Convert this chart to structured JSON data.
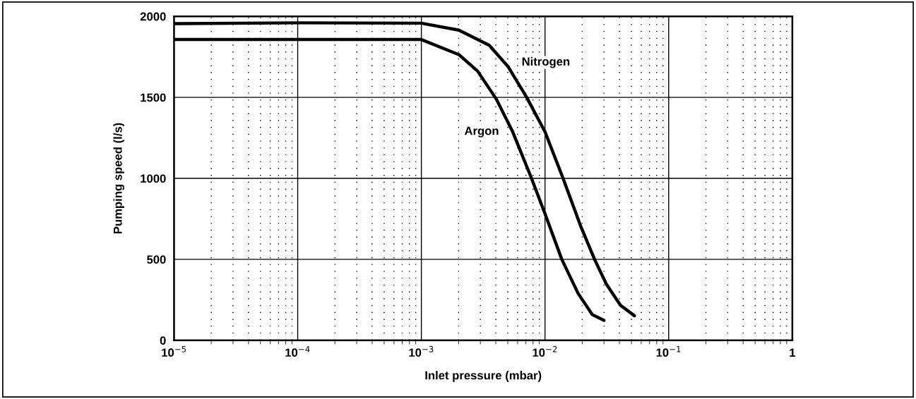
{
  "chart_data": {
    "type": "line",
    "xlabel": "Inlet pressure (mbar)",
    "ylabel": "Pumping speed (l/s)",
    "log": "x",
    "xlim": [
      1e-05,
      1
    ],
    "xticks": [
      {
        "value": 1e-05,
        "label": "10$^{−5}$"
      },
      {
        "value": 0.0001,
        "label": "10$^{−4}$"
      },
      {
        "value": 0.001,
        "label": "10$^{−3}$"
      },
      {
        "value": 0.01,
        "label": "10$^{−2}$"
      },
      {
        "value": 0.1,
        "label": "10$^{−1}$"
      },
      1
    ],
    "ylim": [
      0,
      2000
    ],
    "yticks": [
      0,
      500,
      1000,
      1500,
      2000
    ],
    "grid": true,
    "line_style": "solid",
    "series": [
      {
        "name": "Nitrogen",
        "color": "#000000",
        "x": [
          1e-05,
          0.0001,
          0.001,
          0.00201,
          0.00354,
          0.00501,
          0.00711,
          0.01,
          0.01396,
          0.01936,
          0.02518,
          0.03133,
          0.04074,
          0.05284
        ],
        "values": [
          1955,
          1960,
          1958,
          1915,
          1821,
          1691,
          1500,
          1287,
          1002,
          708,
          499,
          347,
          217,
          152
        ]
      },
      {
        "name": "Argon",
        "color": "#000000",
        "x": [
          1e-05,
          0.0001,
          0.001,
          0.00201,
          0.00285,
          0.00404,
          0.00548,
          0.00776,
          0.01,
          0.01368,
          0.01854,
          0.0241,
          0.03
        ],
        "values": [
          1857,
          1857,
          1857,
          1764,
          1662,
          1489,
          1287,
          1002,
          781,
          499,
          289,
          159,
          123
        ]
      }
    ]
  }
}
